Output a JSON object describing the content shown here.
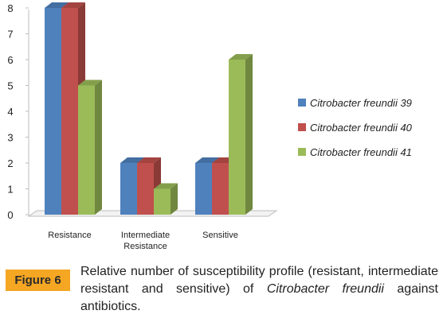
{
  "chart_data": {
    "type": "bar",
    "categories": [
      "Resistance",
      "Intermediate Resistance",
      "Sensitive"
    ],
    "category_lines": [
      [
        "Resistance"
      ],
      [
        "Intermediate",
        "Resistance"
      ],
      [
        "Sensitive"
      ]
    ],
    "series": [
      {
        "name": "Citrobacter freundii 39",
        "values": [
          8,
          2,
          2
        ],
        "color": "#4f81bd"
      },
      {
        "name": "Citrobacter freundii 40",
        "values": [
          8,
          2,
          2
        ],
        "color": "#c0504d"
      },
      {
        "name": "Citrobacter freundii 41",
        "values": [
          5,
          1,
          6
        ],
        "color": "#9bbb59"
      }
    ],
    "ylim": [
      0,
      8
    ],
    "yticks": [
      "0",
      "1",
      "2",
      "3",
      "4",
      "5",
      "6",
      "7",
      "8"
    ],
    "grid": false,
    "legend": "right",
    "style": "3d-clustered"
  },
  "caption": {
    "label": "Figure 6",
    "text_part1": "Relative number of susceptibility profile (resistant, intermediate resistant and sensitive) of ",
    "text_italic": "Citrobacter freundii",
    "text_part2": " against antibiotics."
  }
}
